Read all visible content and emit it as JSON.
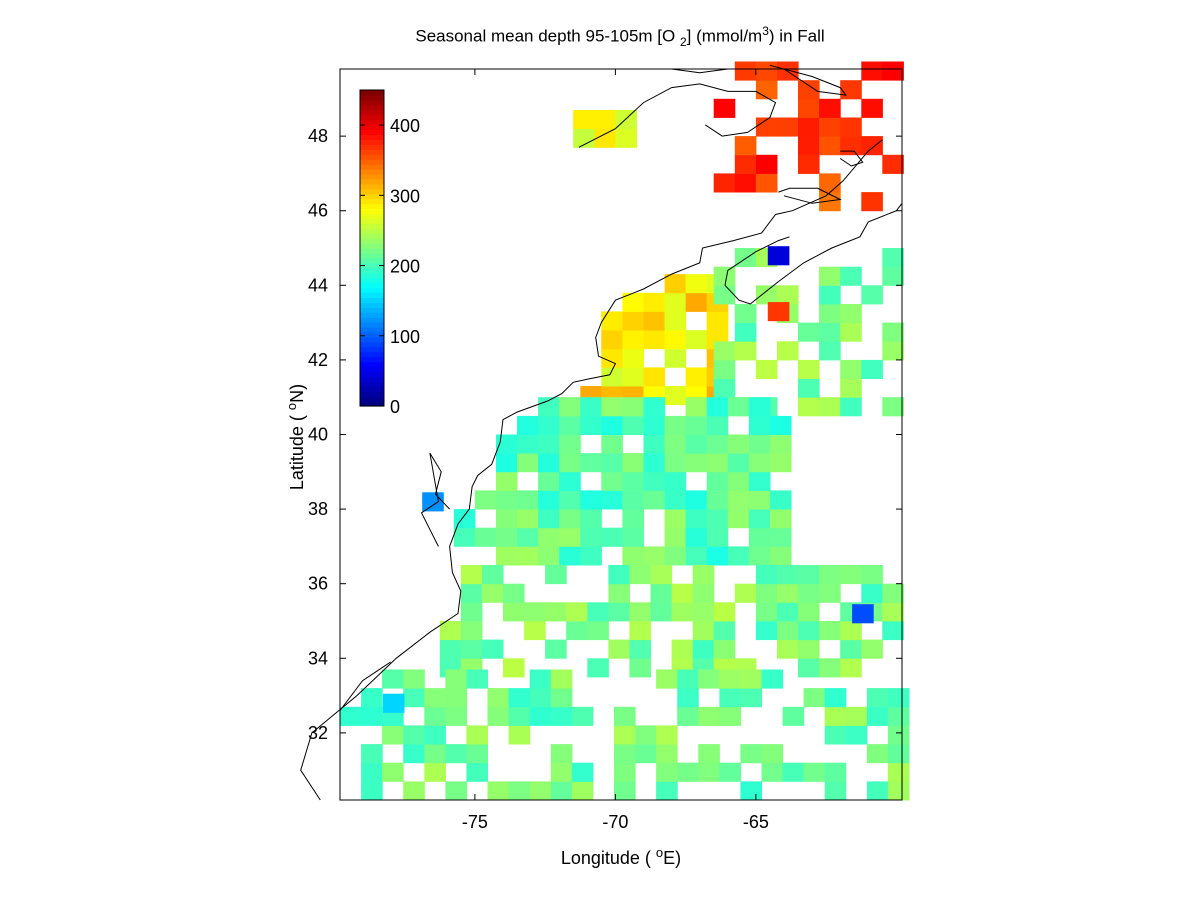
{
  "title": {
    "main": "Seasonal mean depth 95-105m [O",
    "sub": "2",
    "units_pre": "] (mmol/m",
    "units_sup": "3",
    "units_post": ") in  Fall"
  },
  "axes": {
    "xlabel_pre": "Longitude ( ",
    "xlabel_sup": "o",
    "xlabel_post": "E)",
    "ylabel_pre": "Latitude ( ",
    "ylabel_sup": "o",
    "ylabel_post": "N)",
    "x_range": [
      -79.8,
      -59.8
    ],
    "y_range": [
      30.2,
      49.8
    ],
    "x_ticks": [
      -75,
      -70,
      -65
    ],
    "y_ticks": [
      32,
      34,
      36,
      38,
      40,
      42,
      44,
      46,
      48
    ]
  },
  "colorbar": {
    "min": 0,
    "max": 450,
    "ticks": [
      0,
      100,
      200,
      300,
      400
    ],
    "colormap": "jet"
  },
  "chart_data": {
    "type": "heatmap",
    "variable": "O2",
    "units": "mmol/m3",
    "season": "Fall",
    "depth_range_m": [
      95,
      105
    ],
    "cell_size_deg": [
      0.75,
      0.5
    ],
    "value_range": [
      0,
      450
    ],
    "regions": [
      {
        "lon": [
          -66.5,
          -59.8
        ],
        "lat": [
          46.0,
          49.8
        ],
        "value": 370,
        "density": 0.45
      },
      {
        "lon": [
          -71.5,
          -69.0
        ],
        "lat": [
          47.7,
          48.7
        ],
        "value": 270,
        "density": 0.6
      },
      {
        "lon": [
          -75.0,
          -66.5
        ],
        "lat": [
          40.8,
          44.3
        ],
        "value": 290,
        "density": 0.85
      },
      {
        "lon": [
          -66.5,
          -59.8
        ],
        "lat": [
          40.5,
          45.0
        ],
        "value": 225,
        "density": 0.55
      },
      {
        "lon": [
          -76.5,
          -64.0
        ],
        "lat": [
          36.5,
          40.8
        ],
        "value": 210,
        "density": 0.85
      },
      {
        "lon": [
          -77.0,
          -60.0
        ],
        "lat": [
          33.5,
          36.5
        ],
        "value": 222,
        "density": 0.65
      },
      {
        "lon": [
          -79.8,
          -60.0
        ],
        "lat": [
          30.2,
          33.5
        ],
        "value": 218,
        "density": 0.55
      }
    ],
    "spot_values": [
      {
        "lon": -64.2,
        "lat": 44.8,
        "value": 40
      },
      {
        "lon": -64.2,
        "lat": 43.3,
        "value": 370
      },
      {
        "lon": -61.2,
        "lat": 35.2,
        "value": 90
      },
      {
        "lon": -76.5,
        "lat": 38.2,
        "value": 120
      },
      {
        "lon": -77.9,
        "lat": 32.8,
        "value": 150
      }
    ]
  }
}
